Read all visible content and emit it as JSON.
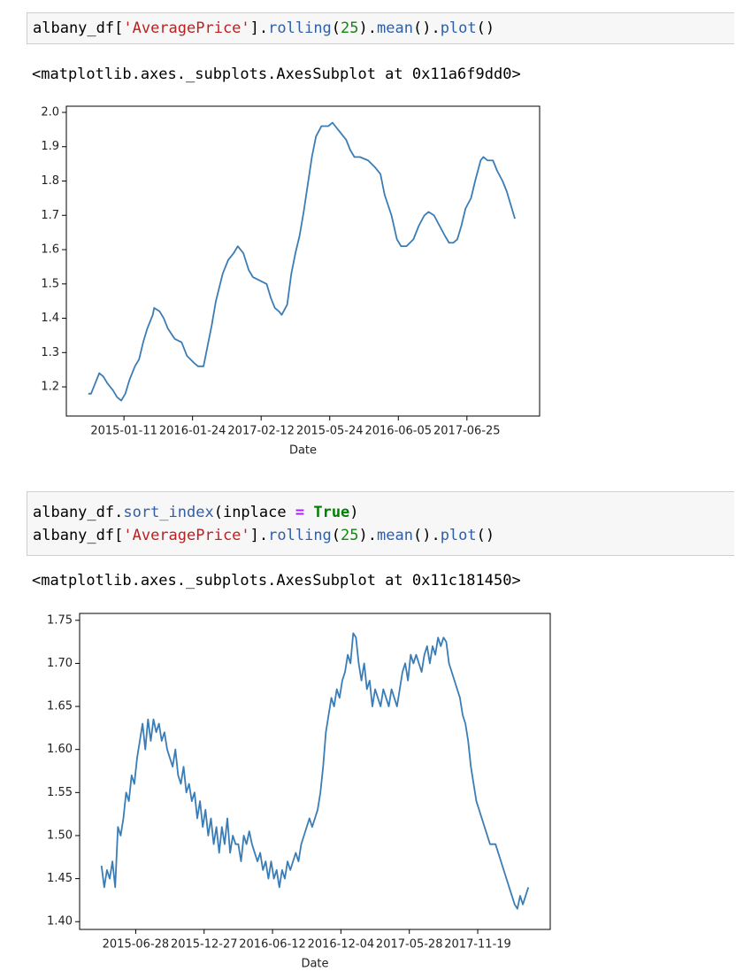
{
  "cells": [
    {
      "code": [
        [
          "albany_df[",
          "'AveragePrice'",
          "].",
          "rolling",
          "(",
          "25",
          ").",
          "mean",
          "().",
          "plot",
          "()"
        ]
      ],
      "output": "<matplotlib.axes._subplots.AxesSubplot at 0x11a6f9dd0>"
    },
    {
      "code": [
        [
          "albany_df.",
          "sort_index",
          "(inplace ",
          "=",
          " ",
          "True",
          ")"
        ],
        [
          "albany_df[",
          "'AveragePrice'",
          "].",
          "rolling",
          "(",
          "25",
          ").",
          "mean",
          "().",
          "plot",
          "()"
        ]
      ],
      "output": "<matplotlib.axes._subplots.AxesSubplot at 0x11c181450>"
    }
  ],
  "chart_data": [
    {
      "type": "line",
      "xlabel": "Date",
      "color": "#3a7db6",
      "x": [
        24,
        26,
        29,
        32,
        35,
        38,
        42,
        45,
        48,
        51,
        54,
        58,
        61,
        64,
        67,
        71,
        72,
        76,
        79,
        82,
        87,
        92,
        96,
        101,
        104,
        108,
        111,
        114,
        117,
        122,
        126,
        130,
        133,
        137,
        141,
        144,
        149,
        154,
        157,
        160,
        163,
        165,
        169,
        172,
        175,
        178,
        181,
        184,
        187,
        190,
        194,
        199,
        202,
        206,
        212,
        215,
        218,
        222,
        228,
        233,
        237,
        240,
        245,
        249,
        252,
        256,
        261,
        265,
        269,
        272,
        276,
        280,
        284,
        287,
        290,
        293,
        296,
        299,
        303,
        306,
        310,
        312,
        315,
        319,
        322,
        326,
        329,
        332,
        335
      ],
      "values": [
        1.18,
        1.18,
        1.21,
        1.24,
        1.23,
        1.21,
        1.19,
        1.17,
        1.16,
        1.18,
        1.22,
        1.26,
        1.28,
        1.33,
        1.37,
        1.41,
        1.43,
        1.42,
        1.4,
        1.37,
        1.34,
        1.33,
        1.29,
        1.27,
        1.26,
        1.26,
        1.32,
        1.38,
        1.45,
        1.53,
        1.57,
        1.59,
        1.61,
        1.59,
        1.54,
        1.52,
        1.51,
        1.5,
        1.46,
        1.43,
        1.42,
        1.41,
        1.44,
        1.53,
        1.59,
        1.64,
        1.71,
        1.79,
        1.87,
        1.93,
        1.96,
        1.96,
        1.97,
        1.95,
        1.92,
        1.89,
        1.87,
        1.87,
        1.86,
        1.84,
        1.82,
        1.76,
        1.7,
        1.63,
        1.61,
        1.61,
        1.63,
        1.67,
        1.7,
        1.71,
        1.7,
        1.67,
        1.64,
        1.62,
        1.62,
        1.63,
        1.67,
        1.72,
        1.75,
        1.8,
        1.86,
        1.87,
        1.86,
        1.86,
        1.83,
        1.8,
        1.77,
        1.73,
        1.69
      ],
      "xlim": [
        8,
        353
      ],
      "xticks": [
        {
          "value": 50,
          "label": "2015-01-11"
        },
        {
          "value": 100,
          "label": "2016-01-24"
        },
        {
          "value": 150,
          "label": "2017-02-12"
        },
        {
          "value": 200,
          "label": "2015-05-24"
        },
        {
          "value": 250,
          "label": "2016-06-05"
        },
        {
          "value": 300,
          "label": "2017-06-25"
        }
      ],
      "ylim": [
        1.115,
        2.018
      ],
      "yticks": [
        1.2,
        1.3,
        1.4,
        1.5,
        1.6,
        1.7,
        1.8,
        1.9,
        {
          "value": 2.0,
          "label": "2.0"
        }
      ]
    },
    {
      "type": "line",
      "xlabel": "Date",
      "color": "#3a7db6",
      "x": [
        25,
        27,
        29,
        31,
        33,
        35,
        37,
        39,
        41,
        43,
        45,
        47,
        49,
        51,
        53,
        55,
        57,
        59,
        61,
        63,
        65,
        67,
        69,
        71,
        73,
        75,
        77,
        79,
        81,
        83,
        85,
        87,
        89,
        91,
        93,
        95,
        97,
        99,
        101,
        103,
        105,
        107,
        109,
        111,
        113,
        115,
        117,
        119,
        121,
        123,
        125,
        127,
        129,
        131,
        133,
        135,
        137,
        139,
        141,
        143,
        145,
        147,
        149,
        151,
        153,
        155,
        157,
        159,
        161,
        163,
        165,
        167,
        169,
        171,
        173,
        175,
        177,
        179,
        181,
        183,
        185,
        187,
        189,
        191,
        193,
        195,
        197,
        199,
        201,
        203,
        205,
        207,
        209,
        211,
        213,
        215,
        217,
        219,
        221,
        223,
        225,
        227,
        229,
        231,
        233,
        235,
        237,
        239,
        241,
        243,
        245,
        247,
        249,
        251,
        253,
        255,
        257,
        259,
        261,
        263,
        265,
        267,
        269,
        271,
        273,
        275,
        277,
        279,
        281,
        283,
        285,
        287,
        289,
        291,
        293,
        295,
        297,
        299,
        301,
        303,
        305,
        307,
        309,
        311,
        313,
        315,
        317,
        319,
        321,
        323,
        325,
        327,
        329,
        331,
        333,
        335,
        337
      ],
      "values": [
        1.465,
        1.44,
        1.46,
        1.45,
        1.47,
        1.44,
        1.51,
        1.5,
        1.52,
        1.55,
        1.54,
        1.57,
        1.56,
        1.59,
        1.61,
        1.63,
        1.6,
        1.635,
        1.61,
        1.635,
        1.62,
        1.63,
        1.61,
        1.62,
        1.6,
        1.59,
        1.58,
        1.6,
        1.57,
        1.56,
        1.58,
        1.55,
        1.56,
        1.54,
        1.55,
        1.52,
        1.54,
        1.51,
        1.53,
        1.5,
        1.52,
        1.49,
        1.51,
        1.48,
        1.51,
        1.49,
        1.52,
        1.48,
        1.5,
        1.49,
        1.49,
        1.47,
        1.5,
        1.49,
        1.505,
        1.49,
        1.48,
        1.47,
        1.48,
        1.46,
        1.47,
        1.45,
        1.47,
        1.45,
        1.46,
        1.44,
        1.46,
        1.45,
        1.47,
        1.46,
        1.47,
        1.48,
        1.47,
        1.49,
        1.5,
        1.51,
        1.52,
        1.51,
        1.52,
        1.53,
        1.55,
        1.58,
        1.62,
        1.64,
        1.66,
        1.65,
        1.67,
        1.66,
        1.68,
        1.69,
        1.71,
        1.7,
        1.735,
        1.73,
        1.7,
        1.68,
        1.7,
        1.67,
        1.68,
        1.65,
        1.67,
        1.66,
        1.65,
        1.67,
        1.66,
        1.65,
        1.67,
        1.66,
        1.65,
        1.67,
        1.69,
        1.7,
        1.68,
        1.71,
        1.7,
        1.71,
        1.7,
        1.69,
        1.71,
        1.72,
        1.7,
        1.72,
        1.71,
        1.73,
        1.72,
        1.73,
        1.725,
        1.7,
        1.69,
        1.68,
        1.67,
        1.66,
        1.64,
        1.63,
        1.61,
        1.58,
        1.56,
        1.54,
        1.53,
        1.52,
        1.51,
        1.5,
        1.49,
        1.49,
        1.49,
        1.48,
        1.47,
        1.46,
        1.45,
        1.44,
        1.43,
        1.42,
        1.415,
        1.43,
        1.42,
        1.43,
        1.44
      ],
      "xlim": [
        9,
        353
      ],
      "xticks": [
        {
          "value": 50,
          "label": "2015-06-28"
        },
        {
          "value": 100,
          "label": "2015-12-27"
        },
        {
          "value": 150,
          "label": "2016-06-12"
        },
        {
          "value": 200,
          "label": "2016-12-04"
        },
        {
          "value": 250,
          "label": "2017-05-28"
        },
        {
          "value": 300,
          "label": "2017-11-19"
        }
      ],
      "ylim": [
        1.391,
        1.758
      ],
      "yticks": [
        {
          "value": 1.4,
          "label": "1.40"
        },
        1.45,
        {
          "value": 1.5,
          "label": "1.50"
        },
        1.55,
        {
          "value": 1.6,
          "label": "1.60"
        },
        1.65,
        {
          "value": 1.7,
          "label": "1.70"
        },
        1.75
      ]
    }
  ]
}
